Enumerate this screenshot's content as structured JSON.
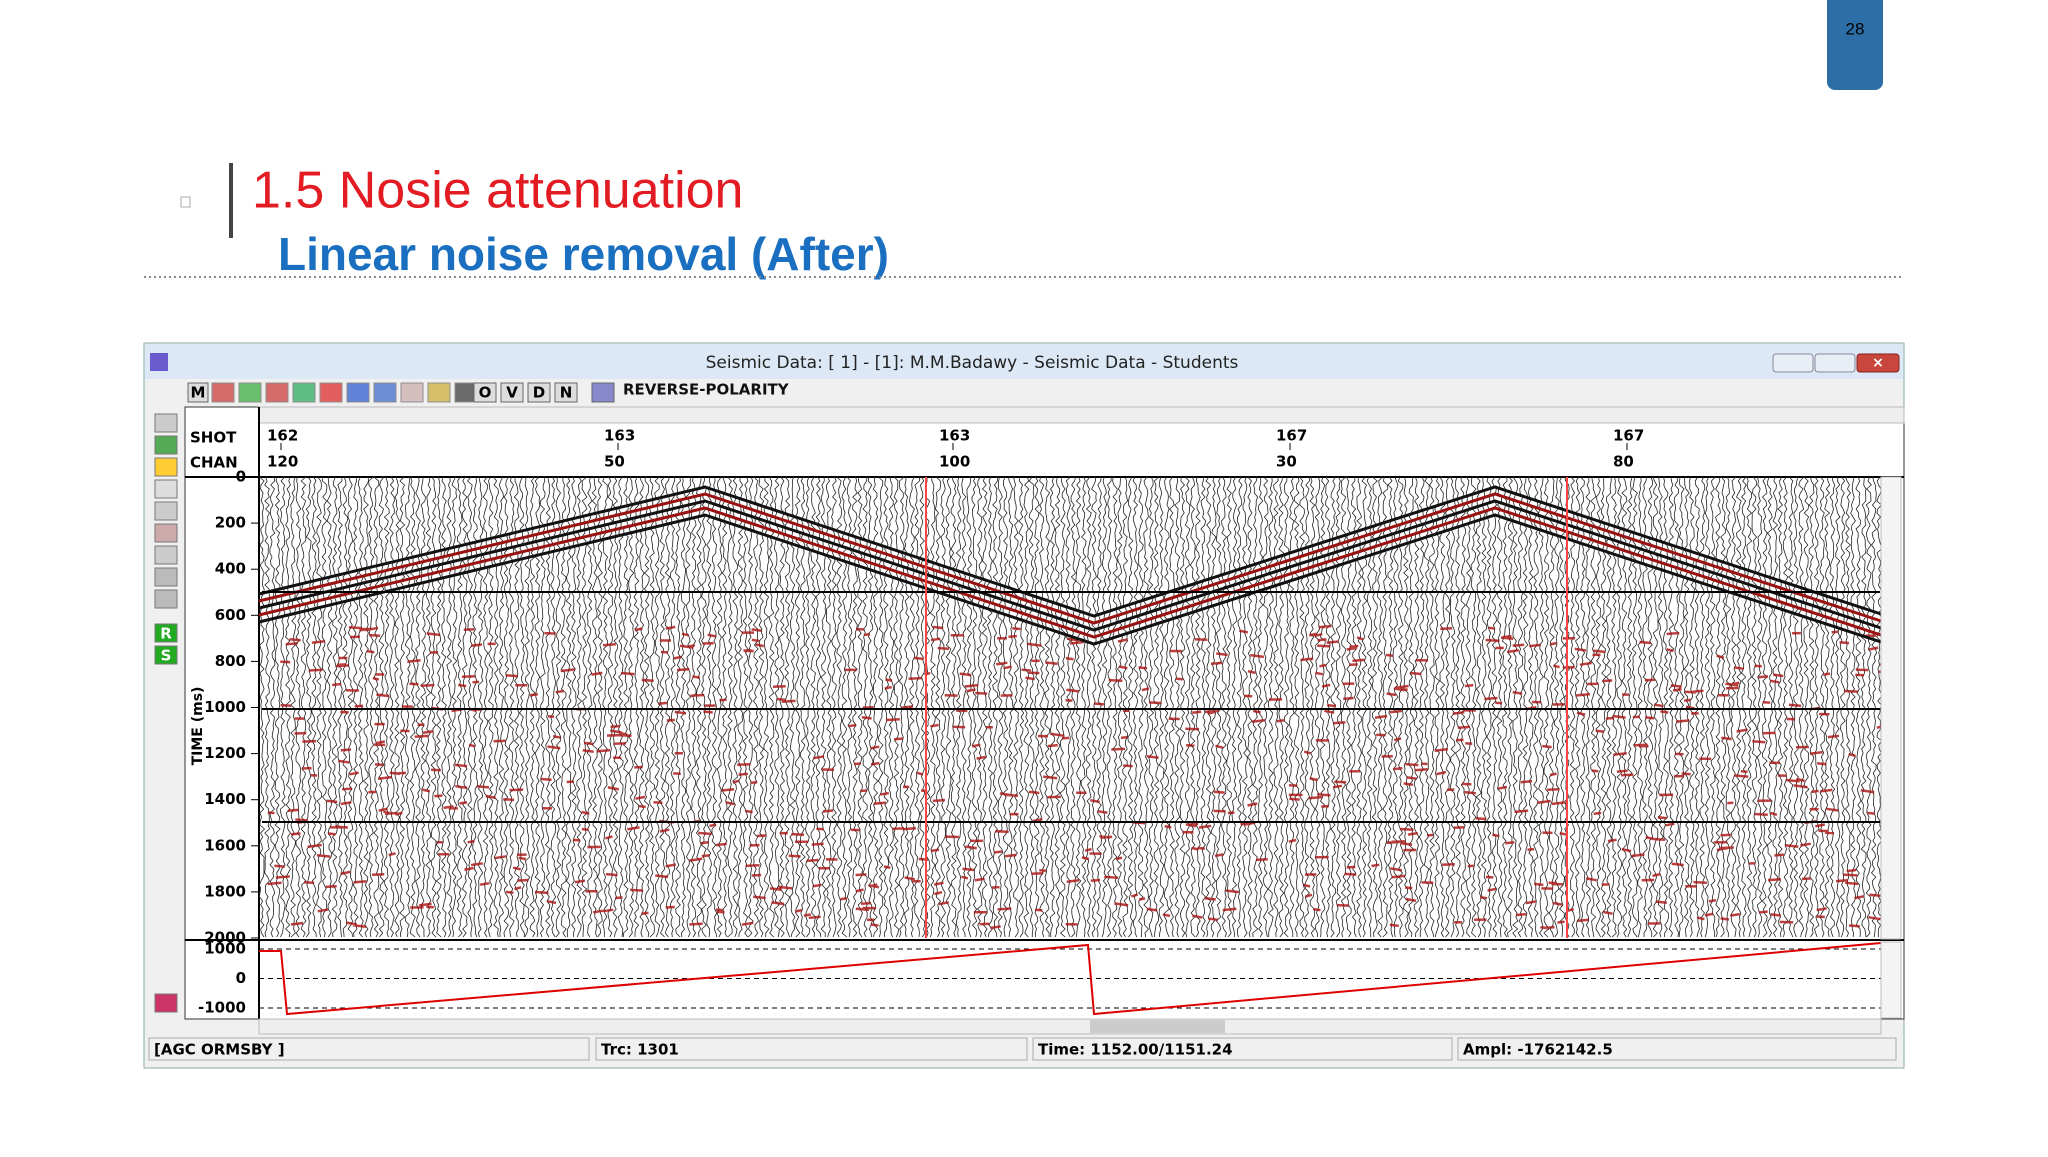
{
  "slide": {
    "page_number": "28",
    "title": "1.5 Nosie attenuation",
    "subtitle": "Linear noise removal (After)"
  },
  "window": {
    "title": "Seismic Data: [  1] - [1]: M.M.Badawy - Seismic Data - Students",
    "toolbar_letters": [
      "M",
      "O",
      "V",
      "D",
      "N"
    ],
    "toolbar_label": "REVERSE-POLARITY",
    "left_tools": [
      "R",
      "S"
    ],
    "header": {
      "row_labels": [
        "SHOT",
        "CHAN"
      ],
      "shots": [
        "162",
        "163",
        "163",
        "167",
        "167"
      ],
      "chans": [
        "120",
        "50",
        "100",
        "30",
        "80"
      ]
    },
    "time_axis": {
      "label": "TIME (ms)",
      "ticks": [
        0,
        200,
        400,
        600,
        800,
        1000,
        1200,
        1400,
        1600,
        1800,
        2000
      ]
    },
    "lower_axis": {
      "ticks": [
        1000,
        0,
        -1000
      ]
    },
    "status": [
      "[AGC ORMSBY ]",
      "Trc: 1301",
      "Time: 1152.00/1151.24",
      "Ampl: -1762142.5"
    ]
  }
}
